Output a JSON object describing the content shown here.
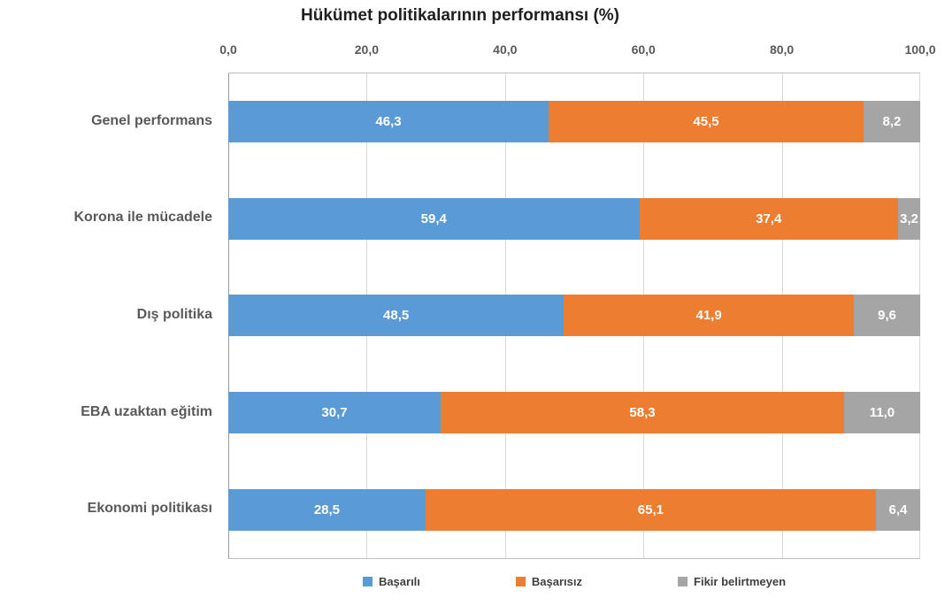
{
  "chart_data": {
    "type": "bar",
    "orientation": "horizontal",
    "stacked": true,
    "stacked_total": 100,
    "title": "Hükümet politikalarının performansı (%)",
    "categories": [
      "Genel performans",
      "Korona ile mücadele",
      "Dış politika",
      "EBA uzaktan eğitim",
      "Ekonomi politikası"
    ],
    "series": [
      {
        "name": "Başarılı",
        "color": "#5B9BD5",
        "values": [
          46.3,
          59.4,
          48.5,
          30.7,
          28.5
        ],
        "labels": [
          "46,3",
          "59,4",
          "48,5",
          "30,7",
          "28,5"
        ]
      },
      {
        "name": "Başarısız",
        "color": "#ED7D31",
        "values": [
          45.5,
          37.4,
          41.9,
          58.3,
          65.1
        ],
        "labels": [
          "45,5",
          "37,4",
          "41,9",
          "58,3",
          "65,1"
        ]
      },
      {
        "name": "Fikir belirtmeyen",
        "color": "#A5A5A5",
        "values": [
          8.2,
          3.2,
          9.6,
          11.0,
          6.4
        ],
        "labels": [
          "8,2",
          "3,2",
          "9,6",
          "11,0",
          "6,4"
        ]
      }
    ],
    "x_ticks": [
      "0,0",
      "20,0",
      "40,0",
      "60,0",
      "80,0",
      "100,0"
    ],
    "x_tick_values": [
      0,
      20,
      40,
      60,
      80,
      100
    ],
    "xlim": [
      0,
      100
    ],
    "grid": true,
    "legend_position": "bottom"
  },
  "colors": {
    "title_text": "#1F1F1F",
    "axis_text": "#595959",
    "category_text": "#595959",
    "data_label_text": "#FFFFFF",
    "legend_text": "#404040",
    "gridline": "#D9D9D9",
    "plot_border": "#BFBFBF",
    "background": "#FFFFFF"
  }
}
